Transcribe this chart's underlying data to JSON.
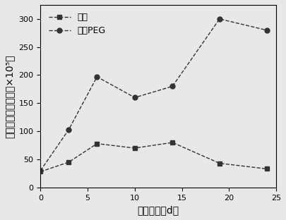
{
  "x": [
    0,
    3,
    6,
    10,
    14,
    19,
    24
  ],
  "control_y": [
    28,
    45,
    78,
    70,
    80,
    43,
    33
  ],
  "peg_y": [
    30,
    103,
    197,
    160,
    180,
    300,
    280
  ],
  "control_label": "对照",
  "peg_label": "添加PEG",
  "xlabel_text": "浸出时间（d）",
  "ylabel_text": "浸出液中细菌浓度（×10⁵）",
  "xlim": [
    0,
    25
  ],
  "ylim": [
    0,
    325
  ],
  "yticks": [
    0,
    50,
    100,
    150,
    200,
    250,
    300
  ],
  "xticks": [
    0,
    5,
    10,
    15,
    20,
    25
  ],
  "line_color": "#333333",
  "background_color": "#e8e8e8",
  "line_style": "--",
  "control_marker": "s",
  "peg_marker": "o",
  "marker_size": 5,
  "linewidth": 1.0,
  "font_size": 10,
  "legend_fontsize": 9,
  "tick_fontsize": 8
}
